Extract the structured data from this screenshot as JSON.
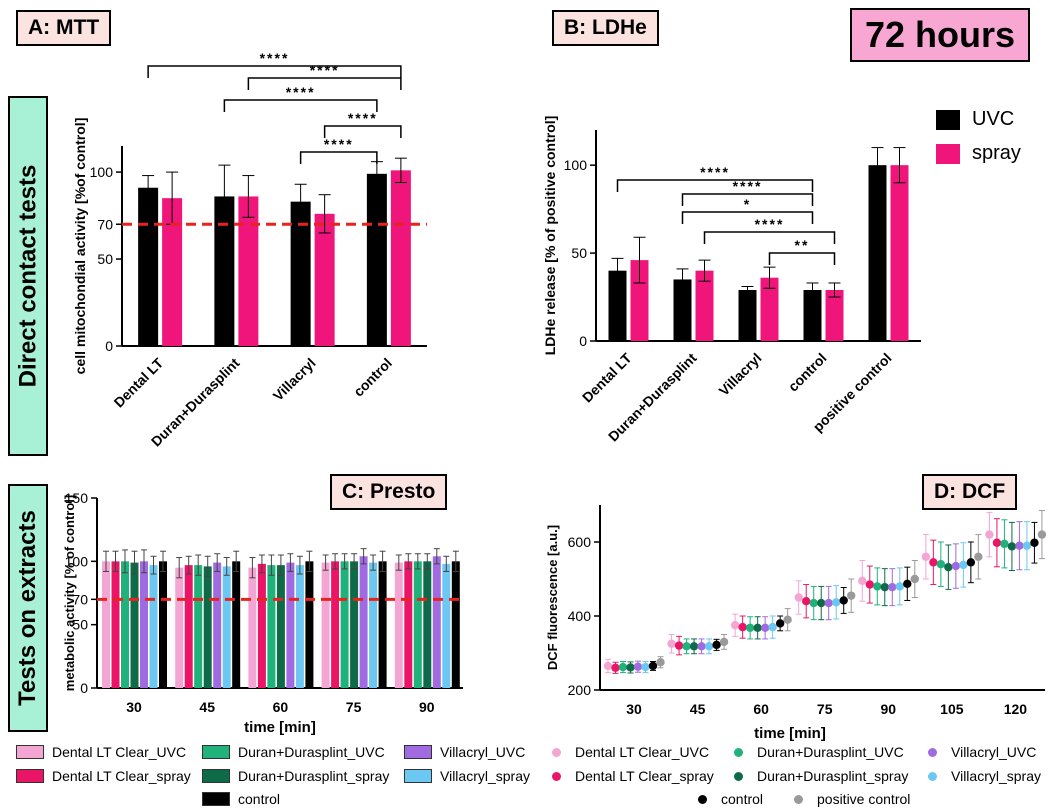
{
  "titles": {
    "a": "A: MTT",
    "b": "B: LDHe",
    "c": "C: Presto",
    "d": "D: DCF",
    "hours": "72 hours"
  },
  "side": {
    "direct": "Direct contact tests",
    "extracts": "Tests on extracts"
  },
  "sig": "****",
  "colors": {
    "uvc": "#000000",
    "spray": "#f0157a",
    "threshold": "#e8231e"
  },
  "chart_data": [
    {
      "type": "bar",
      "id": "A",
      "title": "A: MTT",
      "ylabel": "cell mitochondial activity [%of control]",
      "ylim": [
        0,
        115
      ],
      "yticks": [
        0,
        50,
        70,
        100
      ],
      "threshold": 70,
      "categories": [
        "Dental LT",
        "Duran+Durasplint",
        "Villacryl",
        "control"
      ],
      "series": [
        {
          "name": "UVC",
          "values": [
            91,
            86,
            83,
            99
          ],
          "err": [
            7,
            18,
            10,
            7
          ]
        },
        {
          "name": "spray",
          "values": [
            85,
            86,
            76,
            101
          ],
          "err": [
            15,
            12,
            11,
            7
          ]
        }
      ],
      "brackets": [
        {
          "from": [
            0,
            0
          ],
          "to": [
            3,
            1
          ],
          "label": "****"
        },
        {
          "from": [
            1,
            1
          ],
          "to": [
            3,
            1
          ],
          "label": "****"
        },
        {
          "from": [
            1,
            0
          ],
          "to": [
            3,
            0
          ],
          "label": "****"
        },
        {
          "from": [
            2,
            1
          ],
          "to": [
            3,
            1
          ],
          "label": "****"
        },
        {
          "from": [
            2,
            0
          ],
          "to": [
            3,
            0
          ],
          "label": "****"
        }
      ]
    },
    {
      "type": "bar",
      "id": "B",
      "title": "B: LDHe",
      "ylabel": "LDHe release [% of positive control]",
      "ylim": [
        0,
        120
      ],
      "yticks": [
        0,
        50,
        100
      ],
      "categories": [
        "Dental LT",
        "Duran+Durasplint",
        "Villacryl",
        "control",
        "positive control"
      ],
      "legend": [
        {
          "name": "UVC"
        },
        {
          "name": "spray"
        }
      ],
      "series": [
        {
          "name": "UVC",
          "values": [
            40,
            35,
            29,
            29,
            100
          ],
          "err": [
            7,
            6,
            2,
            4,
            10
          ]
        },
        {
          "name": "spray",
          "values": [
            46,
            40,
            36,
            29,
            100
          ],
          "err": [
            13,
            6,
            6,
            4,
            10
          ]
        }
      ],
      "brackets": [
        {
          "from": [
            0,
            0
          ],
          "to": [
            3,
            0
          ],
          "label": "****"
        },
        {
          "from": [
            1,
            0
          ],
          "to": [
            3,
            0
          ],
          "label": "****"
        },
        {
          "from": [
            1,
            0
          ],
          "to": [
            3,
            0
          ],
          "label": "*"
        },
        {
          "from": [
            1,
            1
          ],
          "to": [
            3,
            1
          ],
          "label": "****"
        },
        {
          "from": [
            2,
            1
          ],
          "to": [
            3,
            1
          ],
          "label": "**"
        }
      ]
    },
    {
      "type": "bar",
      "id": "C",
      "title": "C: Presto",
      "ylabel": "metabolic activity [% of control]",
      "xlabel": "time [min]",
      "ylim": [
        0,
        150
      ],
      "yticks": [
        0,
        50,
        70,
        100,
        150
      ],
      "threshold": 70,
      "categories": [
        "30",
        "45",
        "60",
        "75",
        "90"
      ],
      "series": [
        {
          "name": "Dental LT Clear_UVC",
          "color": "#f3a6d4",
          "values": [
            100,
            95,
            95,
            99,
            99
          ],
          "err": [
            8,
            8,
            8,
            6,
            6
          ]
        },
        {
          "name": "Dental LT Clear_spray",
          "color": "#ea1566",
          "values": [
            100,
            97,
            98,
            100,
            100
          ],
          "err": [
            8,
            7,
            7,
            6,
            6
          ]
        },
        {
          "name": "Duran+Durasplint_UVC",
          "color": "#1fb27a",
          "values": [
            100,
            97,
            97,
            100,
            100
          ],
          "err": [
            9,
            8,
            8,
            6,
            6
          ]
        },
        {
          "name": "Duran+Durasplint_spray",
          "color": "#0e6b47",
          "values": [
            99,
            96,
            97,
            100,
            100
          ],
          "err": [
            9,
            8,
            8,
            6,
            6
          ]
        },
        {
          "name": "Villacryl_UVC",
          "color": "#a06ae0",
          "values": [
            100,
            99,
            99,
            104,
            104
          ],
          "err": [
            9,
            7,
            7,
            6,
            6
          ]
        },
        {
          "name": "Villacryl_spray",
          "color": "#6cc7f3",
          "values": [
            97,
            96,
            97,
            99,
            98
          ],
          "err": [
            7,
            7,
            7,
            6,
            6
          ]
        },
        {
          "name": "control",
          "color": "#000000",
          "values": [
            100,
            100,
            100,
            100,
            100
          ],
          "err": [
            8,
            8,
            8,
            8,
            8
          ]
        }
      ]
    },
    {
      "type": "scatter",
      "id": "D",
      "title": "D: DCF",
      "ylabel": "DCF fluorescence [a.u.]",
      "xlabel": "time [min]",
      "ylim": [
        200,
        700
      ],
      "yticks": [
        200,
        400,
        600
      ],
      "categories": [
        "30",
        "45",
        "60",
        "75",
        "90",
        "105",
        "120"
      ],
      "series": [
        {
          "name": "Dental LT Clear_UVC",
          "color": "#f3a6d4",
          "values": [
            265,
            325,
            375,
            450,
            495,
            560,
            620
          ],
          "err": [
            18,
            25,
            30,
            45,
            55,
            60,
            60
          ]
        },
        {
          "name": "Dental LT Clear_spray",
          "color": "#ea1566",
          "values": [
            260,
            320,
            370,
            440,
            485,
            545,
            598
          ],
          "err": [
            15,
            25,
            30,
            45,
            50,
            60,
            65
          ]
        },
        {
          "name": "Duran+Durasplint_UVC",
          "color": "#1fb27a",
          "values": [
            262,
            318,
            368,
            435,
            480,
            540,
            595
          ],
          "err": [
            15,
            20,
            30,
            45,
            50,
            60,
            65
          ]
        },
        {
          "name": "Duran+Durasplint_spray",
          "color": "#0e6b47",
          "values": [
            261,
            318,
            368,
            435,
            478,
            532,
            588
          ],
          "err": [
            15,
            20,
            30,
            45,
            50,
            60,
            65
          ]
        },
        {
          "name": "Villacryl_UVC",
          "color": "#a06ae0",
          "values": [
            263,
            318,
            368,
            435,
            478,
            535,
            590
          ],
          "err": [
            15,
            20,
            30,
            45,
            50,
            60,
            65
          ]
        },
        {
          "name": "Villacryl_spray",
          "color": "#6cc7f3",
          "values": [
            262,
            318,
            370,
            437,
            480,
            538,
            590
          ],
          "err": [
            15,
            20,
            30,
            45,
            50,
            60,
            65
          ]
        },
        {
          "name": "control",
          "color": "#000000",
          "values": [
            265,
            322,
            380,
            442,
            487,
            545,
            598
          ],
          "err": [
            12,
            15,
            20,
            35,
            45,
            55,
            55
          ]
        },
        {
          "name": "positive control",
          "color": "#9a9a9a",
          "values": [
            275,
            330,
            390,
            455,
            500,
            560,
            620
          ],
          "err": [
            15,
            20,
            30,
            45,
            50,
            60,
            65
          ]
        }
      ]
    }
  ],
  "legend_c": {
    "dlt_uvc": "Dental LT Clear_UVC",
    "dlt_spray": "Dental LT Clear_spray",
    "dd_uvc": "Duran+Durasplint_UVC",
    "dd_spray": "Duran+Durasplint_spray",
    "v_uvc": "Villacryl_UVC",
    "v_spray": "Villacryl_spray",
    "control": "control"
  },
  "legend_d": {
    "dlt_uvc": "Dental LT Clear_UVC",
    "dlt_spray": "Dental LT Clear_spray",
    "dd_uvc": "Duran+Durasplint_UVC",
    "dd_spray": "Duran+Durasplint_spray",
    "v_uvc": "Villacryl_UVC",
    "v_spray": "Villacryl_spray",
    "control": "control",
    "pos": "positive control"
  },
  "legend_b": {
    "uvc": "UVC",
    "spray": "spray"
  }
}
